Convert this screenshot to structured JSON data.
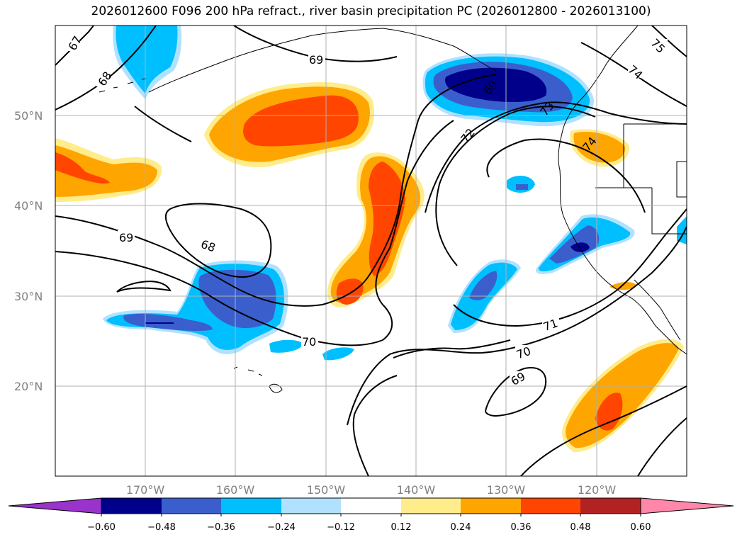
{
  "title": "2026012600 F096 200 hPa refract., river basin precipitation PC (2026012800 - 2026013100)",
  "map": {
    "lon_range": [
      -180,
      -110
    ],
    "lat_range": [
      10,
      60
    ],
    "lat_labels": [
      "50°N",
      "40°N",
      "30°N",
      "20°N"
    ],
    "lon_labels": [
      "170°W",
      "160°W",
      "150°W",
      "140°W",
      "130°W",
      "120°W"
    ],
    "contour_labels": [
      "67",
      "68",
      "69",
      "69",
      "68",
      "70",
      "71",
      "70",
      "69",
      "72",
      "73",
      "74",
      "75",
      "74",
      "69"
    ]
  },
  "colorbar": {
    "ticks": [
      "−0.60",
      "−0.48",
      "−0.36",
      "−0.24",
      "−0.12",
      "0.12",
      "0.24",
      "0.36",
      "0.48",
      "0.60"
    ],
    "colors": [
      "#9933cc",
      "#00008b",
      "#3a5fcd",
      "#00bfff",
      "#b0e2ff",
      "#ffffff",
      "#ffec8b",
      "#ffa500",
      "#ff4500",
      "#b22222",
      "#ff88aa"
    ]
  }
}
